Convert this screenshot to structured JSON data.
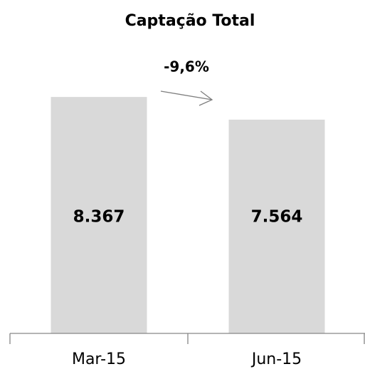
{
  "chart_data": {
    "type": "bar",
    "title": "Captação Total",
    "annotation": "-9,6%",
    "categories": [
      "Mar-15",
      "Jun-15"
    ],
    "values": [
      8367,
      7564
    ],
    "value_labels": [
      "8.367",
      "7.564"
    ],
    "color": "#d9d9d9",
    "ylim": [
      0,
      9000
    ]
  }
}
